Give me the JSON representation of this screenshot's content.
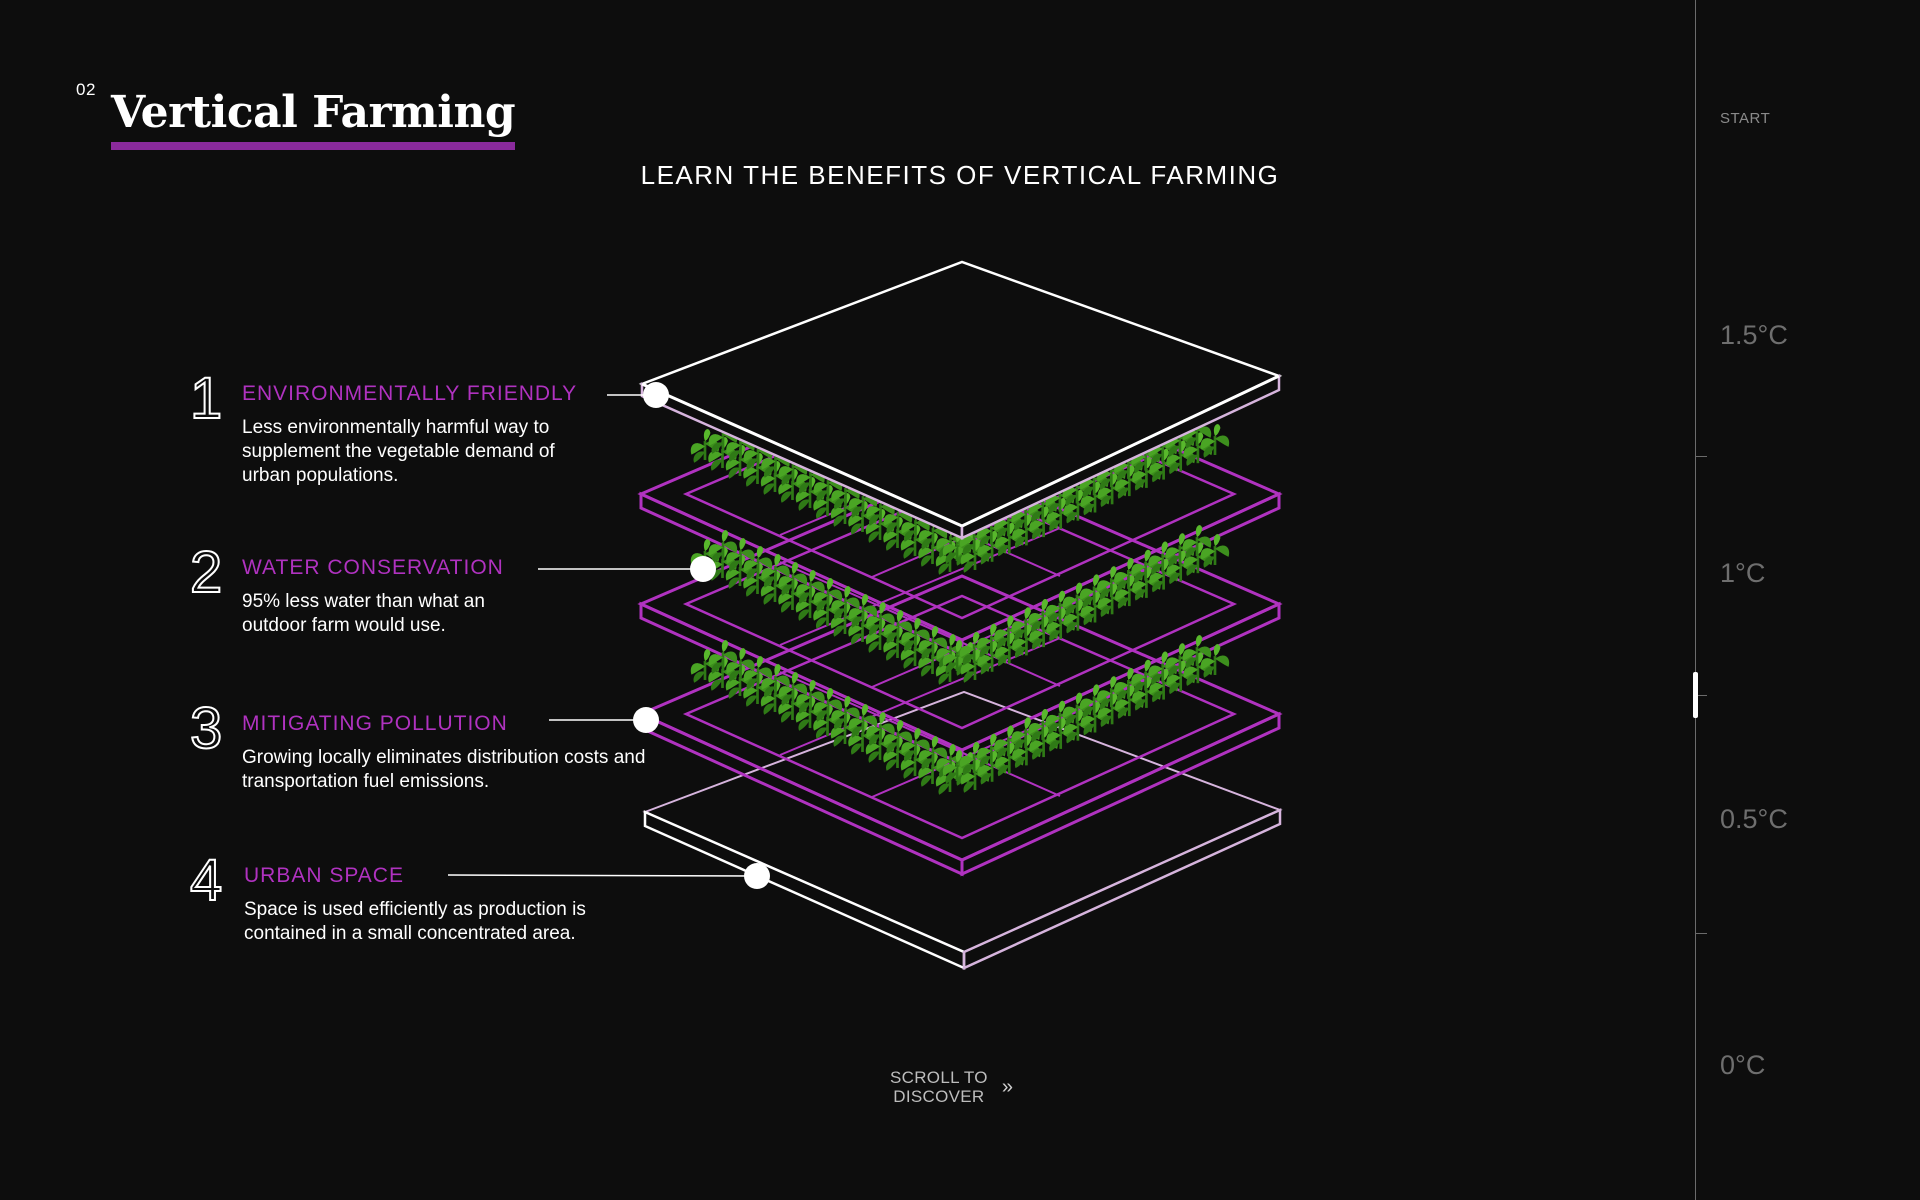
{
  "header": {
    "section_number": "02",
    "title": "Vertical Farming",
    "headline": "LEARN THE BENEFITS OF VERTICAL FARMING"
  },
  "benefits": [
    {
      "number": "1",
      "title": "ENVIRONMENTALLY FRIENDLY",
      "description": "Less environmentally harmful way to supplement the vegetable demand of urban populations."
    },
    {
      "number": "2",
      "title": "WATER CONSERVATION",
      "description": "95% less water than what an outdoor farm would use."
    },
    {
      "number": "3",
      "title": "MITIGATING POLLUTION",
      "description": "Growing locally eliminates distribution costs and transportation fuel emissions."
    },
    {
      "number": "4",
      "title": "URBAN SPACE",
      "description": "Space is used efficiently as production is contained in a small concentrated area."
    }
  ],
  "scroll_cta": {
    "line1": "SCROLL TO",
    "line2": "DISCOVER",
    "icon": "double-chevron-right-icon"
  },
  "temperature_rail": {
    "start_label": "START",
    "labels": [
      "1.5°C",
      "1°C",
      "0.5°C",
      "0°C"
    ]
  },
  "colors": {
    "background": "#0d0d0d",
    "accent_purple": "#b032c0",
    "underline_purple": "#8a2a9c",
    "plant_green": "#3f9a1f",
    "text": "#ffffff",
    "muted": "#6e6e6e"
  }
}
